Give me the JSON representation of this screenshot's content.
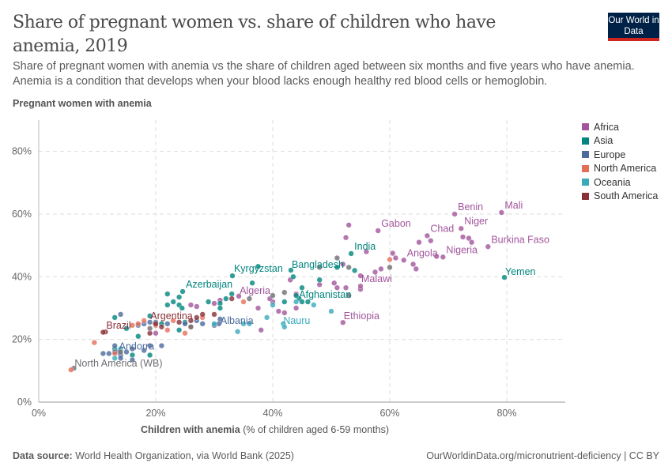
{
  "header": {
    "title": "Share of pregnant women vs. share of children who have anemia, 2019",
    "subtitle": "Share of pregnant women with anemia vs the share of children aged between six months and five years who have anemia. Anemia is a condition that develops when your blood lacks enough healthy red blood cells or hemoglobin.",
    "logo": "Our World in Data"
  },
  "footer": {
    "source_label": "Data source:",
    "source": "World Health Organization, via World Bank (2025)",
    "url": "OurWorldinData.org/micronutrient-deficiency | CC BY"
  },
  "chart_data": {
    "type": "scatter",
    "ylabel": "Pregnant women with anemia",
    "xlabel": "Children with anemia",
    "xlabel_unit": "(% of children aged 6-59 months)",
    "xlim": [
      0,
      90
    ],
    "ylim": [
      0,
      90
    ],
    "xticks": [
      "0%",
      "20%",
      "40%",
      "60%",
      "80%"
    ],
    "yticks": [
      "0%",
      "20%",
      "40%",
      "60%",
      "80%"
    ],
    "grid": true,
    "legend_position": "right",
    "legend": [
      {
        "name": "Africa",
        "color": "#a2559c"
      },
      {
        "name": "Asia",
        "color": "#00847e"
      },
      {
        "name": "Europe",
        "color": "#4c6a9c"
      },
      {
        "name": "North America",
        "color": "#e56e5a"
      },
      {
        "name": "Oceania",
        "color": "#38aaba"
      },
      {
        "name": "South America",
        "color": "#883039"
      }
    ],
    "other_color": "#6d6e72",
    "points": [
      {
        "x": 79.1,
        "y": 60.5,
        "r": "Africa",
        "label": "Mali"
      },
      {
        "x": 71.1,
        "y": 60,
        "r": "Africa",
        "label": "Benin"
      },
      {
        "x": 72.2,
        "y": 55.4,
        "r": "Africa",
        "label": "Niger"
      },
      {
        "x": 66.4,
        "y": 53.1,
        "r": "Africa",
        "label": "Chad"
      },
      {
        "x": 76.8,
        "y": 49.6,
        "r": "Africa",
        "label": "Burkina Faso"
      },
      {
        "x": 69.1,
        "y": 46.3,
        "r": "Africa",
        "label": "Nigeria"
      },
      {
        "x": 62.4,
        "y": 45.3,
        "r": "Africa",
        "label": "Angola"
      },
      {
        "x": 58,
        "y": 54.7,
        "r": "Africa",
        "label": "Gabon"
      },
      {
        "x": 53.4,
        "y": 47.4,
        "r": "Asia",
        "label": "India"
      },
      {
        "x": 55,
        "y": 40.3,
        "r": "Africa",
        "label": "Malawi"
      },
      {
        "x": 79.6,
        "y": 39.8,
        "r": "Asia",
        "label": "Yemen"
      },
      {
        "x": 43.1,
        "y": 42.1,
        "r": "Asia",
        "label": "Bangladesh"
      },
      {
        "x": 33.1,
        "y": 40.3,
        "r": "Asia",
        "label": "Kyrgyzstan"
      },
      {
        "x": 34.2,
        "y": 33.8,
        "r": "Africa",
        "label": "Algeria"
      },
      {
        "x": 44.5,
        "y": 33,
        "r": "Asia",
        "label": "Afghanistan"
      },
      {
        "x": 52,
        "y": 25.4,
        "r": "Africa",
        "label": "Ethiopia"
      },
      {
        "x": 41.8,
        "y": 25,
        "r": "Oceania",
        "label": "Nauru"
      },
      {
        "x": 30.8,
        "y": 25,
        "r": "Europe",
        "label": "Albania"
      },
      {
        "x": 24.6,
        "y": 35.3,
        "r": "Asia",
        "label": "Azerbaijan"
      },
      {
        "x": 19.9,
        "y": 25,
        "r": "South America",
        "label": "Argentina"
      },
      {
        "x": 11.4,
        "y": 22.4,
        "r": "South America",
        "label": "Brazil"
      },
      {
        "x": 13.6,
        "y": 16,
        "r": "Europe",
        "label": "Andorra"
      },
      {
        "x": 6,
        "y": 10.8,
        "r": null,
        "label": "North America (WB)"
      },
      {
        "x": 53,
        "y": 56.5,
        "r": "Africa"
      },
      {
        "x": 52.5,
        "y": 52.5,
        "r": "Africa"
      },
      {
        "x": 56,
        "y": 48,
        "r": "Africa"
      },
      {
        "x": 52,
        "y": 44,
        "r": "Africa"
      },
      {
        "x": 57.5,
        "y": 41.5,
        "r": "Africa"
      },
      {
        "x": 58.5,
        "y": 42.5,
        "r": "Africa"
      },
      {
        "x": 60.5,
        "y": 47.5,
        "r": "Africa"
      },
      {
        "x": 61,
        "y": 46,
        "r": "Africa"
      },
      {
        "x": 65,
        "y": 51,
        "r": "Africa"
      },
      {
        "x": 67,
        "y": 51.5,
        "r": "Africa"
      },
      {
        "x": 72.5,
        "y": 52.7,
        "r": "Africa"
      },
      {
        "x": 73.5,
        "y": 52.3,
        "r": "Africa"
      },
      {
        "x": 74,
        "y": 51,
        "r": "Africa"
      },
      {
        "x": 68,
        "y": 46.5,
        "r": "Africa"
      },
      {
        "x": 64,
        "y": 44,
        "r": "Africa"
      },
      {
        "x": 64.5,
        "y": 42.5,
        "r": "Africa"
      },
      {
        "x": 50.5,
        "y": 38,
        "r": "Africa"
      },
      {
        "x": 51,
        "y": 36.5,
        "r": "Africa"
      },
      {
        "x": 52.5,
        "y": 36.5,
        "r": "Africa"
      },
      {
        "x": 55,
        "y": 36,
        "r": "Africa"
      },
      {
        "x": 55,
        "y": 37,
        "r": "Africa"
      },
      {
        "x": 48,
        "y": 37.5,
        "r": "Africa"
      },
      {
        "x": 43,
        "y": 39,
        "r": "Africa"
      },
      {
        "x": 44,
        "y": 34.5,
        "r": "Africa"
      },
      {
        "x": 40,
        "y": 32,
        "r": "Africa"
      },
      {
        "x": 41,
        "y": 29,
        "r": "Africa"
      },
      {
        "x": 44,
        "y": 30,
        "r": "Africa"
      },
      {
        "x": 42,
        "y": 28.5,
        "r": "Africa"
      },
      {
        "x": 39.5,
        "y": 33,
        "r": "Africa"
      },
      {
        "x": 37.5,
        "y": 30,
        "r": "Africa"
      },
      {
        "x": 38,
        "y": 23,
        "r": "Africa"
      },
      {
        "x": 31,
        "y": 32.5,
        "r": "Africa"
      },
      {
        "x": 26,
        "y": 31,
        "r": "Africa"
      },
      {
        "x": 30,
        "y": 31.5,
        "r": "Africa"
      },
      {
        "x": 27,
        "y": 30.5,
        "r": "Africa"
      },
      {
        "x": 20,
        "y": 22,
        "r": "Africa"
      },
      {
        "x": 37.5,
        "y": 43.3,
        "r": "Asia"
      },
      {
        "x": 36.5,
        "y": 38,
        "r": "Asia"
      },
      {
        "x": 43.5,
        "y": 40,
        "r": "Asia"
      },
      {
        "x": 45,
        "y": 36.5,
        "r": "Asia"
      },
      {
        "x": 44,
        "y": 34,
        "r": "Asia"
      },
      {
        "x": 48,
        "y": 39,
        "r": "Asia"
      },
      {
        "x": 51,
        "y": 43,
        "r": "Asia"
      },
      {
        "x": 54,
        "y": 42,
        "r": "Asia"
      },
      {
        "x": 42,
        "y": 32,
        "r": "Asia"
      },
      {
        "x": 45,
        "y": 32,
        "r": "Asia"
      },
      {
        "x": 46,
        "y": 32,
        "r": "Asia"
      },
      {
        "x": 33,
        "y": 34.5,
        "r": "Asia"
      },
      {
        "x": 32,
        "y": 33,
        "r": "Asia"
      },
      {
        "x": 31,
        "y": 31.5,
        "r": "Asia"
      },
      {
        "x": 29,
        "y": 32,
        "r": "Asia"
      },
      {
        "x": 24,
        "y": 33.5,
        "r": "Asia"
      },
      {
        "x": 22,
        "y": 34.5,
        "r": "Asia"
      },
      {
        "x": 24,
        "y": 31,
        "r": "Asia"
      },
      {
        "x": 23,
        "y": 32,
        "r": "Asia"
      },
      {
        "x": 22,
        "y": 31,
        "r": "Asia"
      },
      {
        "x": 24.5,
        "y": 30,
        "r": "Asia"
      },
      {
        "x": 15,
        "y": 23.5,
        "r": "Asia"
      },
      {
        "x": 13,
        "y": 27,
        "r": "Asia"
      },
      {
        "x": 19,
        "y": 27.5,
        "r": "Asia"
      },
      {
        "x": 21,
        "y": 25,
        "r": "Asia"
      },
      {
        "x": 24,
        "y": 23,
        "r": "Asia"
      },
      {
        "x": 17,
        "y": 21,
        "r": "Asia"
      },
      {
        "x": 19,
        "y": 15,
        "r": "Asia"
      },
      {
        "x": 13,
        "y": 17,
        "r": "Asia"
      },
      {
        "x": 16,
        "y": 15,
        "r": "Asia"
      },
      {
        "x": 25,
        "y": 25.5,
        "r": "Asia"
      },
      {
        "x": 31,
        "y": 30,
        "r": "Asia"
      },
      {
        "x": 14,
        "y": 28,
        "r": "Europe"
      },
      {
        "x": 17,
        "y": 24.5,
        "r": "Europe"
      },
      {
        "x": 18,
        "y": 25,
        "r": "Europe"
      },
      {
        "x": 19,
        "y": 25.5,
        "r": "Europe"
      },
      {
        "x": 20,
        "y": 25.5,
        "r": "Europe"
      },
      {
        "x": 22,
        "y": 25,
        "r": "Europe"
      },
      {
        "x": 25,
        "y": 25,
        "r": "Europe"
      },
      {
        "x": 27,
        "y": 26,
        "r": "Europe"
      },
      {
        "x": 28,
        "y": 25,
        "r": "Europe"
      },
      {
        "x": 30,
        "y": 24.5,
        "r": "Europe"
      },
      {
        "x": 31,
        "y": 26.5,
        "r": "Europe"
      },
      {
        "x": 12,
        "y": 15.5,
        "r": "Europe"
      },
      {
        "x": 13,
        "y": 16,
        "r": "Europe"
      },
      {
        "x": 14,
        "y": 15,
        "r": "Europe"
      },
      {
        "x": 15,
        "y": 16,
        "r": "Europe"
      },
      {
        "x": 16,
        "y": 17,
        "r": "Europe"
      },
      {
        "x": 11,
        "y": 15.5,
        "r": "Europe"
      },
      {
        "x": 14,
        "y": 14,
        "r": "Europe"
      },
      {
        "x": 16,
        "y": 13.5,
        "r": "Europe"
      },
      {
        "x": 18,
        "y": 16.5,
        "r": "Europe"
      },
      {
        "x": 19,
        "y": 18,
        "r": "Europe"
      },
      {
        "x": 21,
        "y": 18,
        "r": "Europe"
      },
      {
        "x": 13,
        "y": 18,
        "r": "Europe"
      },
      {
        "x": 9.5,
        "y": 19,
        "r": "North America"
      },
      {
        "x": 5.5,
        "y": 10.3,
        "r": "North America"
      },
      {
        "x": 13,
        "y": 15.5,
        "r": "North America"
      },
      {
        "x": 16,
        "y": 24.5,
        "r": "North America"
      },
      {
        "x": 18,
        "y": 26,
        "r": "North America"
      },
      {
        "x": 20,
        "y": 24.5,
        "r": "North America"
      },
      {
        "x": 22,
        "y": 23,
        "r": "North America"
      },
      {
        "x": 23,
        "y": 26,
        "r": "North America"
      },
      {
        "x": 25,
        "y": 22,
        "r": "North America"
      },
      {
        "x": 26,
        "y": 24,
        "r": "North America"
      },
      {
        "x": 17,
        "y": 25,
        "r": "North America"
      },
      {
        "x": 60,
        "y": 45.5,
        "r": "North America"
      },
      {
        "x": 28,
        "y": 27,
        "r": "North America"
      },
      {
        "x": 35,
        "y": 32,
        "r": "North America"
      },
      {
        "x": 40,
        "y": 31,
        "r": "Oceania"
      },
      {
        "x": 44,
        "y": 32,
        "r": "Oceania"
      },
      {
        "x": 47,
        "y": 31,
        "r": "Oceania"
      },
      {
        "x": 50,
        "y": 29,
        "r": "Oceania"
      },
      {
        "x": 35,
        "y": 25,
        "r": "Oceania"
      },
      {
        "x": 34,
        "y": 22.5,
        "r": "Oceania"
      },
      {
        "x": 30,
        "y": 25,
        "r": "Oceania"
      },
      {
        "x": 39,
        "y": 27,
        "r": "Oceania"
      },
      {
        "x": 42,
        "y": 24,
        "r": "Oceania"
      },
      {
        "x": 14,
        "y": 17,
        "r": "Oceania"
      },
      {
        "x": 36,
        "y": 25,
        "r": "Oceania"
      },
      {
        "x": 13,
        "y": 14,
        "r": "Oceania"
      },
      {
        "x": 11,
        "y": 22.3,
        "r": "South America"
      },
      {
        "x": 19,
        "y": 22,
        "r": "South America"
      },
      {
        "x": 20,
        "y": 25,
        "r": "South America"
      },
      {
        "x": 24,
        "y": 25.5,
        "r": "South America"
      },
      {
        "x": 26,
        "y": 26,
        "r": "South America"
      },
      {
        "x": 30,
        "y": 28,
        "r": "South America"
      },
      {
        "x": 33,
        "y": 33,
        "r": "South America"
      },
      {
        "x": 28,
        "y": 28,
        "r": "South America"
      },
      {
        "x": 21,
        "y": 24,
        "r": "South America"
      },
      {
        "x": 27,
        "y": 27,
        "r": "South America"
      },
      {
        "x": 51,
        "y": 46,
        "r": null
      },
      {
        "x": 53,
        "y": 43,
        "r": null
      },
      {
        "x": 60,
        "y": 43,
        "r": null
      },
      {
        "x": 53,
        "y": 34,
        "r": null
      },
      {
        "x": 40,
        "y": 34,
        "r": null
      },
      {
        "x": 42,
        "y": 35,
        "r": null
      },
      {
        "x": 26,
        "y": 24,
        "r": null
      },
      {
        "x": 19,
        "y": 23.5,
        "r": null
      },
      {
        "x": 14,
        "y": 16,
        "r": null
      },
      {
        "x": 36,
        "y": 33,
        "r": null
      },
      {
        "x": 48,
        "y": 43,
        "r": null
      }
    ]
  }
}
